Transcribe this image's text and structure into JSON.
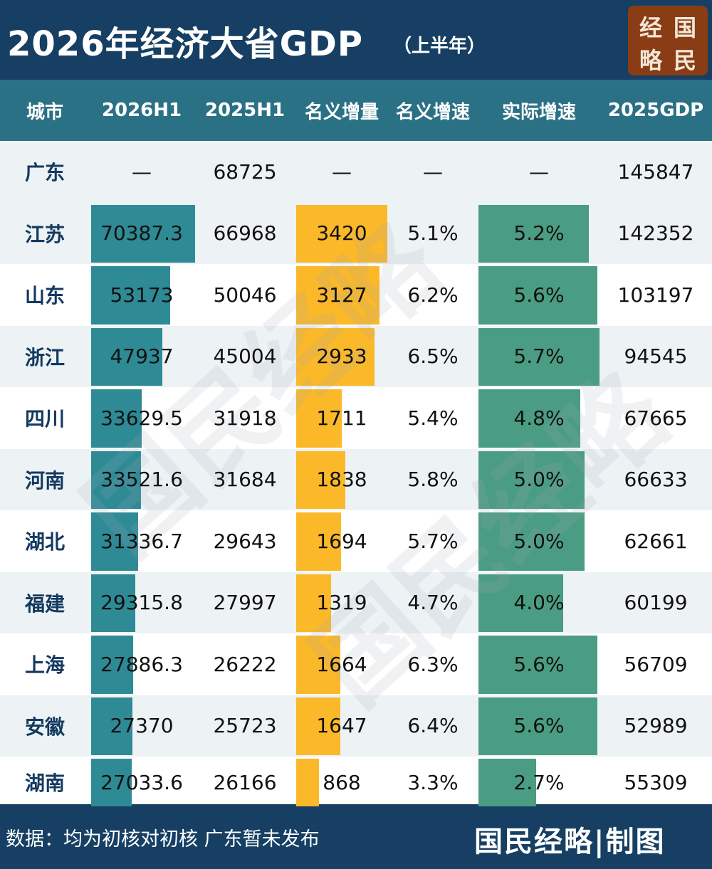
{
  "header": {
    "title": "2026年经济大省GDP",
    "subtitle": "（上半年）",
    "logo_chars": [
      "经",
      "国",
      "略",
      "民"
    ],
    "colors": {
      "header_bg": "#163f63",
      "column_header_bg": "#2a7185",
      "logo_bg": "#8a3d14"
    }
  },
  "watermark_text": "国民经略",
  "chart_data": {
    "type": "table",
    "columns": [
      "城市",
      "2026H1",
      "2025H1",
      "名义增量",
      "名义增速",
      "实际增速",
      "2025GDP"
    ],
    "rows": [
      {
        "city": "广东",
        "h1_2026": "—",
        "h1_2025": "68725",
        "nominal_increase": "—",
        "nominal_growth": "—",
        "real_growth": "—",
        "gdp_2025": "145847"
      },
      {
        "city": "江苏",
        "h1_2026": "70387.3",
        "h1_2025": "66968",
        "nominal_increase": "3420",
        "nominal_growth": "5.1%",
        "real_growth": "5.2%",
        "gdp_2025": "142352"
      },
      {
        "city": "山东",
        "h1_2026": "53173",
        "h1_2025": "50046",
        "nominal_increase": "3127",
        "nominal_growth": "6.2%",
        "real_growth": "5.6%",
        "gdp_2025": "103197"
      },
      {
        "city": "浙江",
        "h1_2026": "47937",
        "h1_2025": "45004",
        "nominal_increase": "2933",
        "nominal_growth": "6.5%",
        "real_growth": "5.7%",
        "gdp_2025": "94545"
      },
      {
        "city": "四川",
        "h1_2026": "33629.5",
        "h1_2025": "31918",
        "nominal_increase": "1711",
        "nominal_growth": "5.4%",
        "real_growth": "4.8%",
        "gdp_2025": "67665"
      },
      {
        "city": "河南",
        "h1_2026": "33521.6",
        "h1_2025": "31684",
        "nominal_increase": "1838",
        "nominal_growth": "5.8%",
        "real_growth": "5.0%",
        "gdp_2025": "66633"
      },
      {
        "city": "湖北",
        "h1_2026": "31336.7",
        "h1_2025": "29643",
        "nominal_increase": "1694",
        "nominal_growth": "5.7%",
        "real_growth": "5.0%",
        "gdp_2025": "62661"
      },
      {
        "city": "福建",
        "h1_2026": "29315.8",
        "h1_2025": "27997",
        "nominal_increase": "1319",
        "nominal_growth": "4.7%",
        "real_growth": "4.0%",
        "gdp_2025": "60199"
      },
      {
        "city": "上海",
        "h1_2026": "27886.3",
        "h1_2025": "26222",
        "nominal_increase": "1664",
        "nominal_growth": "6.3%",
        "real_growth": "5.6%",
        "gdp_2025": "56709"
      },
      {
        "city": "安徽",
        "h1_2026": "27370",
        "h1_2025": "25723",
        "nominal_increase": "1647",
        "nominal_growth": "6.4%",
        "real_growth": "5.6%",
        "gdp_2025": "52989"
      },
      {
        "city": "湖南",
        "h1_2026": "27033.6",
        "h1_2025": "26166",
        "nominal_increase": "868",
        "nominal_growth": "3.3%",
        "real_growth": "2.7%",
        "gdp_2025": "55309"
      }
    ],
    "bar_columns": {
      "h1_2026": {
        "color": "#2e8b96"
      },
      "nominal_increase": {
        "color": "#fbb829"
      },
      "real_growth": {
        "color": "#4a9d82"
      }
    }
  },
  "footer": {
    "note": "数据：均为初核对初核 广东暂未发布",
    "credit": "国民经略|制图"
  }
}
